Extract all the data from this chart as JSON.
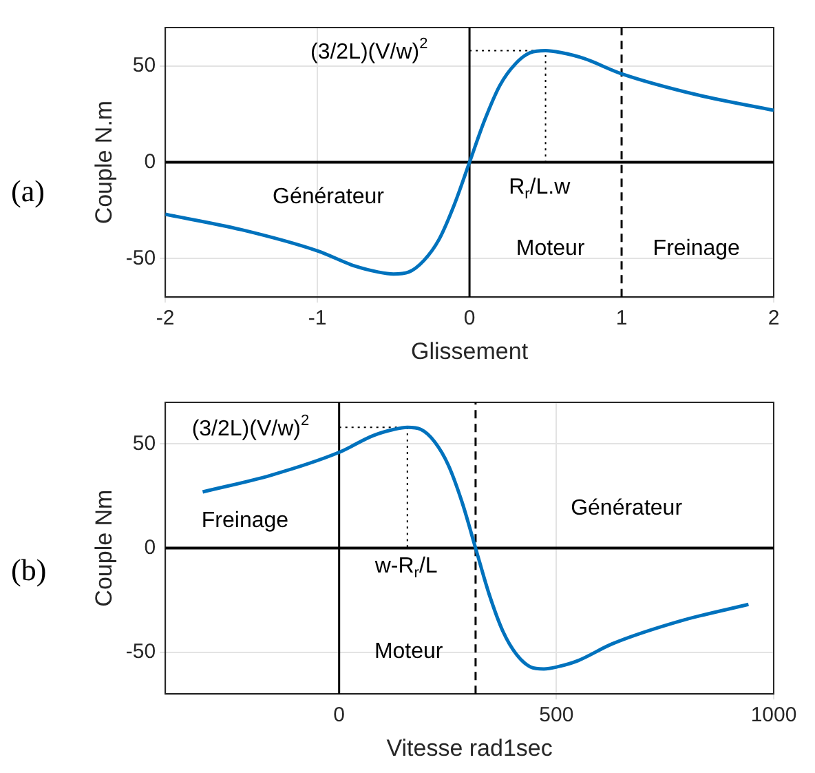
{
  "chart_data": [
    {
      "type": "line",
      "xlabel": "Glissement",
      "ylabel": "Couple N.m",
      "xlim": [
        -2,
        2
      ],
      "xticks": [
        -2,
        -1,
        0,
        1,
        2
      ],
      "ylim": [
        -70,
        70
      ],
      "yticks": [
        -50,
        0,
        50
      ],
      "grid": true,
      "legend": false,
      "series": [
        {
          "type": "line",
          "color": "#0072bd",
          "x": [
            -2,
            -1.5,
            -1,
            -0.75,
            -0.6,
            -0.5,
            -0.4,
            -0.3,
            -0.2,
            -0.1,
            0,
            0.1,
            0.2,
            0.3,
            0.4,
            0.5,
            0.6,
            0.75,
            1,
            1.5,
            2
          ],
          "values": [
            -27,
            -35,
            -46,
            -54,
            -57,
            -58,
            -57,
            -51,
            -40,
            -22,
            0,
            22,
            40,
            51,
            57,
            58,
            57,
            54,
            46,
            35,
            27
          ]
        },
        {
          "type": "line",
          "color": "#000000",
          "line_style": "dotted",
          "x": [
            0,
            0.5,
            0.5
          ],
          "values": [
            58,
            58,
            0
          ]
        }
      ],
      "ref_lines": [
        {
          "axis": "x",
          "value": 0,
          "color": "#000000",
          "line_style": "solid"
        },
        {
          "axis": "y",
          "value": 0,
          "color": "#000000",
          "line_style": "solid"
        },
        {
          "axis": "x",
          "value": 1,
          "color": "#000000",
          "line_style": "dashed"
        }
      ],
      "annotations": [
        "(a)",
        "(3/2L)(V/w)$^{2}$",
        "R$_{r}$/L.w",
        "Générateur",
        "Moteur",
        "Freinage"
      ]
    },
    {
      "type": "line",
      "xlabel": "Vitesse rad1sec",
      "ylabel": "Couple Nm",
      "xlim": [
        -400,
        1000
      ],
      "xticks": [
        0,
        500,
        1000
      ],
      "ylim": [
        -70,
        70
      ],
      "yticks": [
        -50,
        0,
        50
      ],
      "grid": true,
      "legend": false,
      "series": [
        {
          "type": "line",
          "color": "#0072bd",
          "x": [
            -314,
            -157,
            0,
            78,
            126,
            157,
            188,
            220,
            251,
            283,
            314,
            345,
            377,
            408,
            440,
            471,
            502,
            550,
            628,
            785,
            942
          ],
          "values": [
            27,
            35,
            46,
            54,
            57,
            58,
            57,
            51,
            40,
            22,
            0,
            -22,
            -40,
            -51,
            -57,
            -58,
            -57,
            -54,
            -46,
            -35,
            -27
          ]
        },
        {
          "type": "line",
          "color": "#000000",
          "line_style": "dotted",
          "x": [
            0,
            157,
            157
          ],
          "values": [
            58,
            58,
            0
          ]
        }
      ],
      "ref_lines": [
        {
          "axis": "x",
          "value": 0,
          "color": "#000000",
          "line_style": "solid"
        },
        {
          "axis": "y",
          "value": 0,
          "color": "#000000",
          "line_style": "solid"
        },
        {
          "axis": "x",
          "value": 314,
          "color": "#000000",
          "line_style": "dashed"
        }
      ],
      "annotations": [
        "(b)",
        "(3/2L)(V/w)$^{2}$",
        "w-R$_{r}$/L",
        "Freinage",
        "Générateur",
        "Moteur"
      ]
    }
  ]
}
